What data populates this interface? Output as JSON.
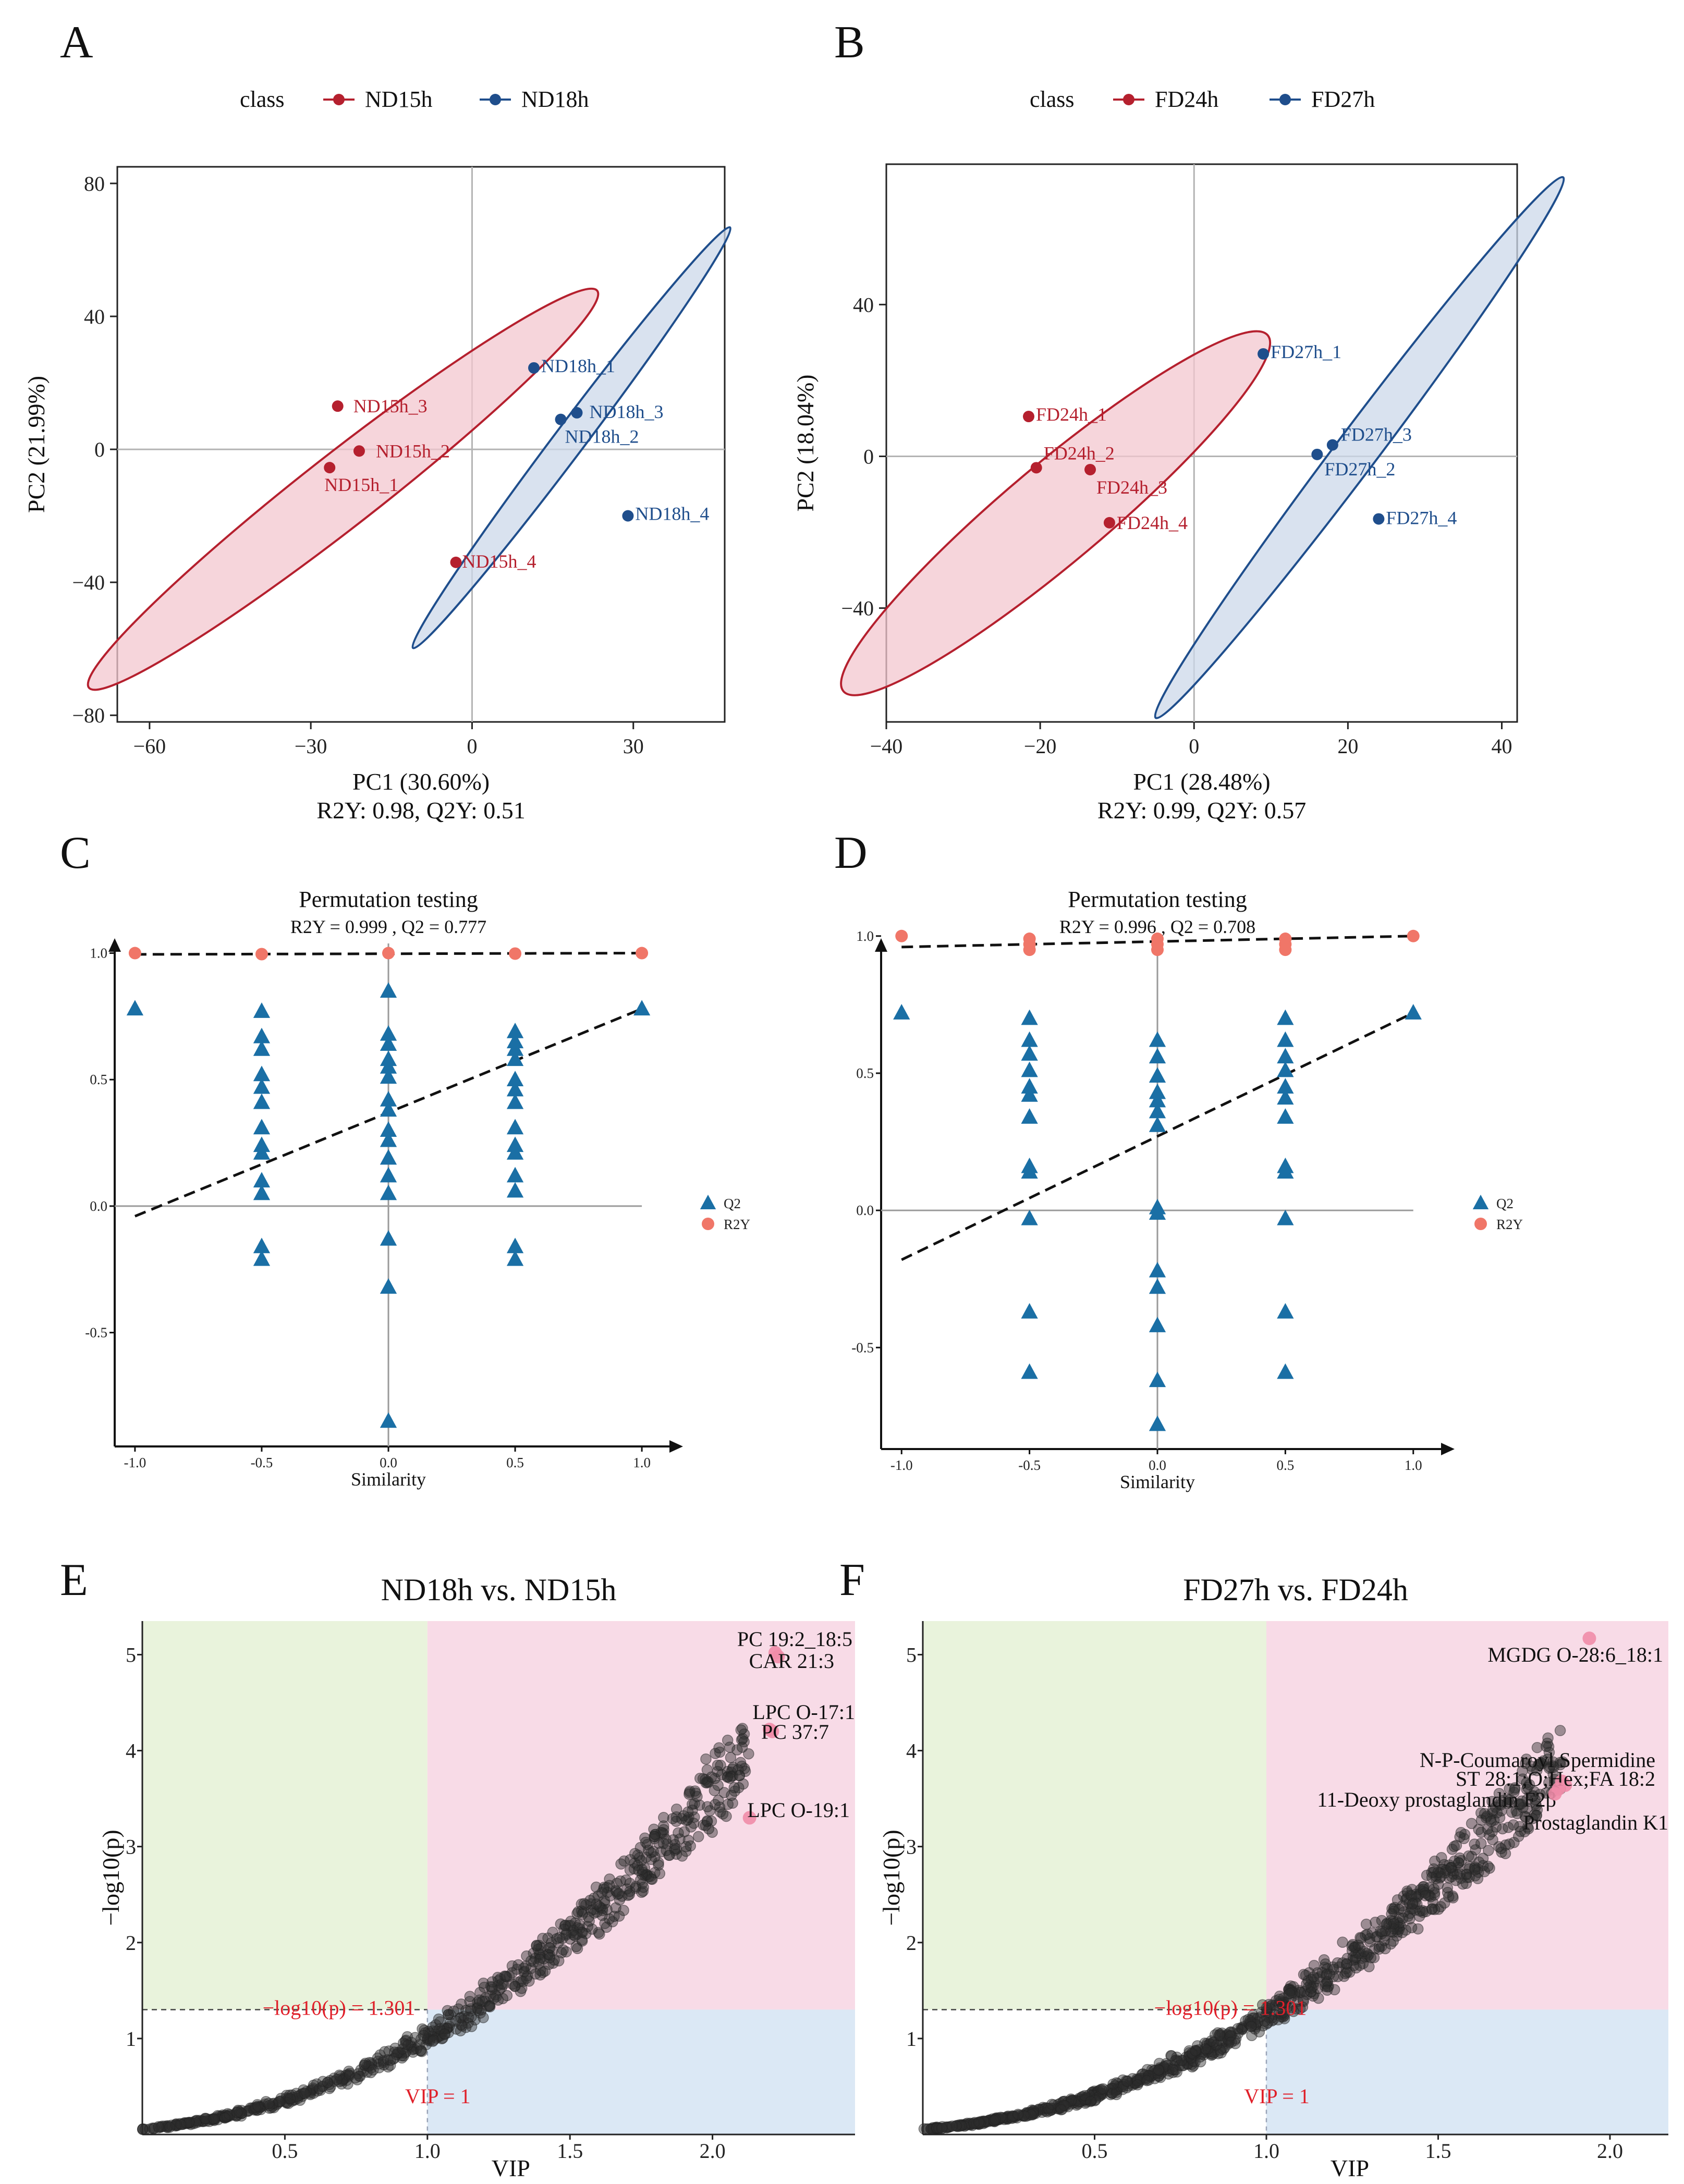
{
  "colors": {
    "red": "#b5202e",
    "red_fill": "#f3c7cf",
    "blue": "#1f4e8c",
    "blue_fill": "#ccd8ea",
    "perm_q2": "#1a6fa5",
    "perm_r2y": "#f07668",
    "green_zone": "#e9f3dc",
    "pink_zone": "#f8dbe7",
    "blue_zone": "#dbe8f5",
    "sig_point": "#f08ca8",
    "point": "#333333",
    "threshold": "#e0202a"
  },
  "chart_data": [
    {
      "panel": "A",
      "type": "scatter",
      "legend": {
        "title": "class",
        "entries": [
          "ND15h",
          "ND18h"
        ]
      },
      "xlabel": "PC1 (30.60%)",
      "ylabel": "PC2 (21.99%)",
      "footer": "R2Y: 0.98, Q2Y: 0.51",
      "xlim": [
        -66,
        47
      ],
      "ylim": [
        -82,
        85
      ],
      "xticks": [
        -60,
        -30,
        0,
        30
      ],
      "xtick_labels": [
        "−60",
        "−30",
        "0",
        "30"
      ],
      "yticks": [
        80,
        40,
        0,
        -40,
        -80
      ],
      "ytick_labels": [
        "80",
        "40",
        "0",
        "−40",
        "−80"
      ],
      "series": [
        {
          "name": "ND15h",
          "color": "red",
          "points": [
            {
              "x": -25,
              "y": 13,
              "label": "ND15h_3"
            },
            {
              "x": -21,
              "y": -0.5,
              "label": "ND15h_2"
            },
            {
              "x": -26.5,
              "y": -5.5,
              "label": "ND15h_1"
            },
            {
              "x": -3,
              "y": -34,
              "label": "ND15h_4"
            }
          ],
          "ellipse": {
            "cx": -24,
            "cy": -12,
            "rx": 60,
            "ry": 11,
            "angle": -38
          }
        },
        {
          "name": "ND18h",
          "color": "blue",
          "points": [
            {
              "x": 11.5,
              "y": 24.5,
              "label": "ND18h_1"
            },
            {
              "x": 19.5,
              "y": 11,
              "label": "ND18h_3"
            },
            {
              "x": 16.5,
              "y": 9,
              "label": "ND18h_2"
            },
            {
              "x": 29,
              "y": -20,
              "label": "ND18h_4"
            }
          ],
          "ellipse": {
            "cx": 18.5,
            "cy": 3.5,
            "rx": 49,
            "ry": 4.6,
            "angle": -53
          }
        }
      ]
    },
    {
      "panel": "B",
      "type": "scatter",
      "legend": {
        "title": "class",
        "entries": [
          "FD24h",
          "FD27h"
        ]
      },
      "xlabel": "PC1 (28.48%)",
      "ylabel": "PC2 (18.04%)",
      "footer": "R2Y: 0.99, Q2Y: 0.57",
      "xlim": [
        -40,
        42
      ],
      "ylim": [
        -70,
        77
      ],
      "xticks": [
        -40,
        -20,
        0,
        20,
        40
      ],
      "xtick_labels": [
        "−40",
        "−20",
        "0",
        "20",
        "40"
      ],
      "yticks": [
        40,
        0,
        -40
      ],
      "ytick_labels": [
        "40",
        "0",
        "−40"
      ],
      "series": [
        {
          "name": "FD24h",
          "color": "red",
          "points": [
            {
              "x": -21.5,
              "y": 10.5,
              "label": "FD24h_1"
            },
            {
              "x": -20.5,
              "y": -3,
              "label": "FD24h_2"
            },
            {
              "x": -13.5,
              "y": -3.5,
              "label": "FD24h_3"
            },
            {
              "x": -11,
              "y": -17.5,
              "label": "FD24h_4"
            }
          ],
          "ellipse": {
            "cx": -18,
            "cy": -15,
            "rx": 36,
            "ry": 13,
            "angle": -40
          }
        },
        {
          "name": "FD27h",
          "color": "blue",
          "points": [
            {
              "x": 9,
              "y": 27,
              "label": "FD27h_1"
            },
            {
              "x": 18,
              "y": 3,
              "label": "FD27h_3"
            },
            {
              "x": 16,
              "y": 0.5,
              "label": "FD27h_2"
            },
            {
              "x": 24,
              "y": -16.5,
              "label": "FD27h_4"
            }
          ],
          "ellipse": {
            "cx": 21.5,
            "cy": 2.3,
            "rx": 44,
            "ry": 5.5,
            "angle": -53
          }
        }
      ]
    },
    {
      "panel": "C",
      "type": "scatter",
      "title": "Permutation testing",
      "subtitle": "R2Y = 0.999 ,  Q2 = 0.777",
      "xlabel": "Similarity",
      "legend": {
        "entries": [
          "Q2",
          "R2Y"
        ]
      },
      "xlim": [
        -1.08,
        1.08
      ],
      "ylim": [
        -0.95,
        1.1
      ],
      "xticks": [
        -1.0,
        -0.5,
        0.0,
        0.5,
        1.0
      ],
      "xtick_labels": [
        "-1.0",
        "-0.5",
        "0.0",
        "0.5",
        "1.0"
      ],
      "yticks": [
        1.0,
        0.5,
        0.0,
        -0.5
      ],
      "ytick_labels": [
        "1.0",
        "0.5",
        "0.0",
        "-0.5"
      ],
      "r2y_points": [
        [
          -1,
          1.0
        ],
        [
          -0.5,
          0.996
        ],
        [
          0,
          1.0
        ],
        [
          0.5,
          0.998
        ],
        [
          1,
          1.0
        ]
      ],
      "q2_points": [
        [
          -1,
          0.78
        ],
        [
          1,
          0.78
        ],
        [
          -0.5,
          0.77
        ],
        [
          -0.5,
          0.67
        ],
        [
          -0.5,
          0.62
        ],
        [
          -0.5,
          0.52
        ],
        [
          -0.5,
          0.47
        ],
        [
          -0.5,
          0.41
        ],
        [
          -0.5,
          0.31
        ],
        [
          -0.5,
          0.24
        ],
        [
          -0.5,
          0.21
        ],
        [
          -0.5,
          0.1
        ],
        [
          -0.5,
          0.05
        ],
        [
          -0.5,
          -0.16
        ],
        [
          -0.5,
          -0.21
        ],
        [
          0,
          0.85
        ],
        [
          0,
          0.68
        ],
        [
          0,
          0.64
        ],
        [
          0,
          0.58
        ],
        [
          0,
          0.55
        ],
        [
          0,
          0.51
        ],
        [
          0,
          0.42
        ],
        [
          0,
          0.38
        ],
        [
          0,
          0.3
        ],
        [
          0,
          0.26
        ],
        [
          0,
          0.19
        ],
        [
          0,
          0.12
        ],
        [
          0,
          0.05
        ],
        [
          0,
          -0.13
        ],
        [
          0,
          -0.32
        ],
        [
          0,
          -0.85
        ],
        [
          0.5,
          0.69
        ],
        [
          0.5,
          0.65
        ],
        [
          0.5,
          0.62
        ],
        [
          0.5,
          0.58
        ],
        [
          0.5,
          0.5
        ],
        [
          0.5,
          0.46
        ],
        [
          0.5,
          0.41
        ],
        [
          0.5,
          0.31
        ],
        [
          0.5,
          0.24
        ],
        [
          0.5,
          0.21
        ],
        [
          0.5,
          0.12
        ],
        [
          0.5,
          0.06
        ],
        [
          0.5,
          -0.16
        ],
        [
          0.5,
          -0.21
        ]
      ],
      "r2y_line": [
        [
          -1.0,
          0.995
        ],
        [
          1.0,
          1.0
        ]
      ],
      "q2_line": [
        [
          -1.0,
          -0.04
        ],
        [
          1.0,
          0.78
        ]
      ]
    },
    {
      "panel": "D",
      "type": "scatter",
      "title": "Permutation testing",
      "subtitle": "R2Y = 0.996 ,  Q2 = 0.708",
      "xlabel": "Similarity",
      "legend": {
        "entries": [
          "Q2",
          "R2Y"
        ]
      },
      "xlim": [
        -1.08,
        1.08
      ],
      "ylim": [
        -0.87,
        1.03
      ],
      "xticks": [
        -1.0,
        -0.5,
        0.0,
        0.5,
        1.0
      ],
      "xtick_labels": [
        "-1.0",
        "-0.5",
        "0.0",
        "0.5",
        "1.0"
      ],
      "yticks": [
        1.0,
        0.5,
        0.0,
        -0.5
      ],
      "ytick_labels": [
        "1.0",
        "0.5",
        "0.0",
        "-0.5"
      ],
      "r2y_points": [
        [
          -1,
          1.0
        ],
        [
          -0.5,
          0.99
        ],
        [
          -0.5,
          0.97
        ],
        [
          -0.5,
          0.95
        ],
        [
          0,
          0.99
        ],
        [
          0,
          0.97
        ],
        [
          0,
          0.95
        ],
        [
          0.5,
          0.99
        ],
        [
          0.5,
          0.97
        ],
        [
          0.5,
          0.95
        ],
        [
          1,
          1.0
        ]
      ],
      "q2_points": [
        [
          -1,
          0.72
        ],
        [
          1,
          0.72
        ],
        [
          -0.5,
          0.7
        ],
        [
          -0.5,
          0.62
        ],
        [
          -0.5,
          0.57
        ],
        [
          -0.5,
          0.51
        ],
        [
          -0.5,
          0.45
        ],
        [
          -0.5,
          0.42
        ],
        [
          -0.5,
          0.34
        ],
        [
          -0.5,
          0.16
        ],
        [
          -0.5,
          0.14
        ],
        [
          -0.5,
          -0.03
        ],
        [
          -0.5,
          -0.37
        ],
        [
          -0.5,
          -0.59
        ],
        [
          0,
          0.62
        ],
        [
          0,
          0.56
        ],
        [
          0,
          0.49
        ],
        [
          0,
          0.43
        ],
        [
          0,
          0.4
        ],
        [
          0,
          0.36
        ],
        [
          0,
          0.31
        ],
        [
          0,
          0.01
        ],
        [
          0,
          -0.01
        ],
        [
          0,
          -0.22
        ],
        [
          0,
          -0.28
        ],
        [
          0,
          -0.42
        ],
        [
          0,
          -0.62
        ],
        [
          0,
          -0.78
        ],
        [
          0.5,
          0.7
        ],
        [
          0.5,
          0.62
        ],
        [
          0.5,
          0.56
        ],
        [
          0.5,
          0.51
        ],
        [
          0.5,
          0.45
        ],
        [
          0.5,
          0.41
        ],
        [
          0.5,
          0.34
        ],
        [
          0.5,
          0.16
        ],
        [
          0.5,
          0.14
        ],
        [
          0.5,
          -0.03
        ],
        [
          0.5,
          -0.37
        ],
        [
          0.5,
          -0.59
        ]
      ],
      "r2y_line": [
        [
          -1.0,
          0.96
        ],
        [
          1.0,
          1.0
        ]
      ],
      "q2_line": [
        [
          -1.0,
          -0.18
        ],
        [
          1.0,
          0.72
        ]
      ]
    },
    {
      "panel": "E",
      "type": "scatter",
      "title": "ND18h vs. ND15h",
      "xlabel": "VIP",
      "ylabel": "−log10(p)",
      "xlim": [
        0.0,
        2.5
      ],
      "ylim": [
        0.0,
        5.35
      ],
      "xticks": [
        0.5,
        1.0,
        1.5,
        2.0
      ],
      "xtick_labels": [
        "0.5",
        "1.0",
        "1.5",
        "2.0"
      ],
      "yticks": [
        1,
        2,
        3,
        4,
        5
      ],
      "ytick_labels": [
        "1",
        "2",
        "3",
        "4",
        "5"
      ],
      "vip_threshold": 1,
      "p_threshold": 1.301,
      "threshold_labels": {
        "p": "−log10(p) = 1.301",
        "vip": "VIP = 1"
      },
      "curve": {
        "vmax": 2.13,
        "k": 1.55,
        "a": 0.05,
        "b": 3.25,
        "count": 700
      },
      "highlights": [
        {
          "x": 2.22,
          "y": 5.02,
          "label": "PC 19:2_18:5"
        },
        {
          "x": 2.23,
          "y": 4.98,
          "label": "CAR 21:3"
        },
        {
          "x": 2.2,
          "y": 4.22,
          "label": "LPC O-17:1"
        },
        {
          "x": 2.21,
          "y": 4.2,
          "label": "PC 37:7"
        },
        {
          "x": 2.13,
          "y": 3.3,
          "label": "LPC O-19:1"
        }
      ]
    },
    {
      "panel": "F",
      "type": "scatter",
      "title": "FD27h vs. FD24h",
      "xlabel": "VIP",
      "ylabel": "−log10(p)",
      "xlim": [
        0.0,
        2.17
      ],
      "ylim": [
        0.0,
        5.35
      ],
      "xticks": [
        0.5,
        1.0,
        1.5,
        2.0
      ],
      "xtick_labels": [
        "0.5",
        "1.0",
        "1.5",
        "2.0"
      ],
      "yticks": [
        1,
        2,
        3,
        4,
        5
      ],
      "ytick_labels": [
        "1",
        "2",
        "3",
        "4",
        "5"
      ],
      "vip_threshold": 1,
      "p_threshold": 1.301,
      "threshold_labels": {
        "p": "−log10(p) = 1.301",
        "vip": "VIP = 1"
      },
      "curve": {
        "vmax": 1.86,
        "k": 1.6,
        "a": 0.05,
        "b": 3.25,
        "count": 900
      },
      "highlights": [
        {
          "x": 1.94,
          "y": 5.17,
          "label": "MGDG O-28:6_18:1"
        },
        {
          "x": 1.86,
          "y": 3.68,
          "label": "N-P-Coumaroyl Spermidine"
        },
        {
          "x": 1.87,
          "y": 3.64,
          "label": "ST 28:1;O;Hex;FA 18:2"
        },
        {
          "x": 1.85,
          "y": 3.6,
          "label": "11-Deoxy prostaglandin F2β"
        },
        {
          "x": 1.84,
          "y": 3.55,
          "label": "Prostaglandin K1"
        }
      ]
    }
  ]
}
